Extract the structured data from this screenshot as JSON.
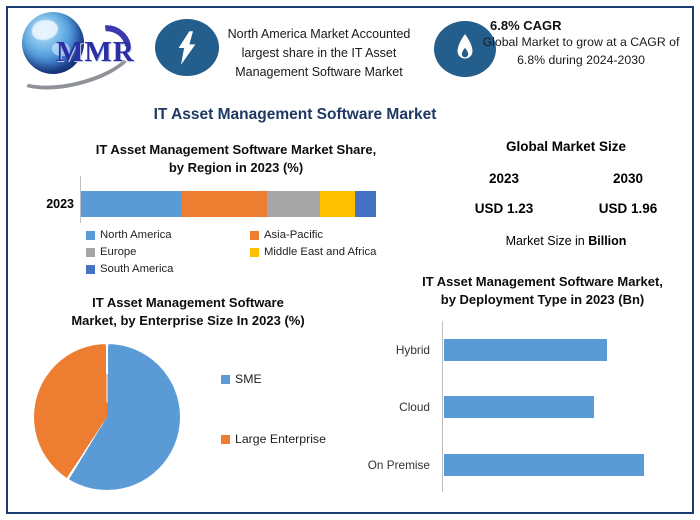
{
  "page": {
    "border_color": "#1C3B6E",
    "main_title": "IT Asset Management Software Market"
  },
  "header": {
    "logo_text": "MMR",
    "highlight": {
      "icon": "lightning-icon",
      "text": "North America Market Accounted largest share in the IT Asset Management Software Market"
    },
    "cagr": {
      "icon": "flame-icon",
      "heading": "6.8% CAGR",
      "text": "Global Market to grow at a CAGR of 6.8% during 2024-2030"
    }
  },
  "market_size": {
    "title": "Global Market Size",
    "year_left": "2023",
    "year_right": "2030",
    "value_left": "USD 1.23",
    "value_right": "USD 1.96",
    "value_color": "#1F8ECD",
    "note_prefix": "Market Size in ",
    "note_bold": "Billion"
  },
  "chart_data": [
    {
      "type": "bar",
      "variant": "stacked-horizontal",
      "title_lines": [
        "IT Asset Management Software Market Share,",
        "by Region in 2023 (%)"
      ],
      "categories": [
        "2023"
      ],
      "series": [
        {
          "name": "North America",
          "values": [
            34
          ],
          "color": "#5B9BD5"
        },
        {
          "name": "Asia-Pacific",
          "values": [
            29
          ],
          "color": "#ED7D31"
        },
        {
          "name": "Europe",
          "values": [
            18
          ],
          "color": "#A5A5A5"
        },
        {
          "name": "Middle East and Africa",
          "values": [
            12
          ],
          "color": "#FFC000"
        },
        {
          "name": "South America",
          "values": [
            7
          ],
          "color": "#4472C4"
        }
      ],
      "xlim": [
        0,
        100
      ],
      "legend_position": "bottom"
    },
    {
      "type": "pie",
      "title_lines": [
        "IT Asset Management Software",
        "Market, by Enterprise Size In 2023 (%)"
      ],
      "labels": [
        "SME",
        "Large Enterprise"
      ],
      "values": [
        59,
        41
      ],
      "colors": [
        "#5B9BD5",
        "#ED7D31"
      ],
      "start_angle_deg": 0,
      "legend_position": "right"
    },
    {
      "type": "bar",
      "variant": "horizontal",
      "title_lines": [
        "IT Asset Management Software Market,",
        "by Deployment Type in 2023 (Bn)"
      ],
      "categories": [
        "Hybrid",
        "Cloud",
        "On Premise"
      ],
      "values": [
        0.39,
        0.36,
        0.48
      ],
      "xlim": [
        0,
        0.5
      ],
      "bar_color": "#5B9BD5"
    }
  ]
}
